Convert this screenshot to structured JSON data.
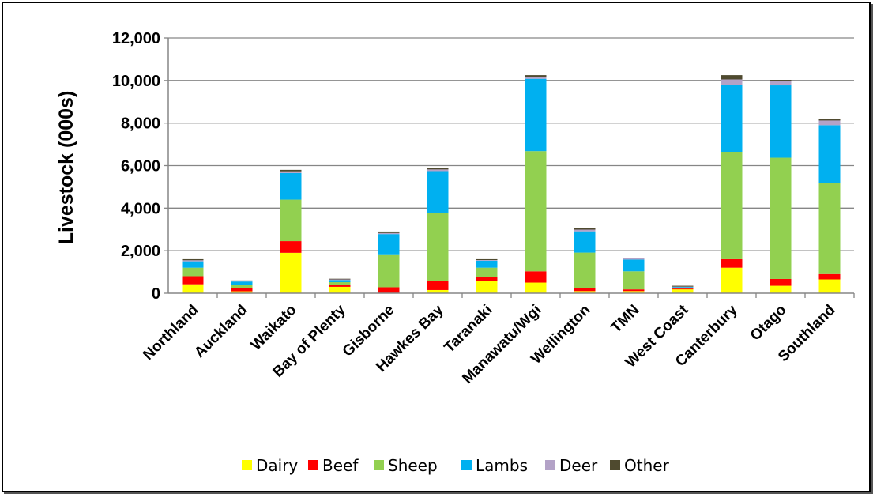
{
  "chart_data": {
    "type": "bar",
    "stacked": true,
    "title": "",
    "xlabel": "",
    "ylabel": "Livestock (000s)",
    "ylim": [
      0,
      12000
    ],
    "yticks": [
      0,
      2000,
      4000,
      6000,
      8000,
      10000,
      12000
    ],
    "ytick_labels": [
      "0",
      "2,000",
      "4,000",
      "6,000",
      "8,000",
      "10,000",
      "12,000"
    ],
    "grid": true,
    "legend_position": "bottom",
    "categories": [
      "Northland",
      "Auckland",
      "Waikato",
      "Bay of Plenty",
      "Gisborne",
      "Hawkes Bay",
      "Taranaki",
      "Manawatu/Wgi",
      "Wellington",
      "TMN",
      "West Coast",
      "Canterbury",
      "Otago",
      "Southland"
    ],
    "series": [
      {
        "name": "Dairy",
        "color": "#ffff00",
        "values": [
          420,
          90,
          1900,
          300,
          20,
          150,
          580,
          500,
          100,
          100,
          180,
          1200,
          350,
          650
        ]
      },
      {
        "name": "Beef",
        "color": "#ff0000",
        "values": [
          380,
          140,
          550,
          90,
          260,
          440,
          170,
          530,
          160,
          80,
          40,
          400,
          320,
          250
        ]
      },
      {
        "name": "Sheep",
        "color": "#92d050",
        "values": [
          400,
          150,
          1950,
          130,
          1550,
          3200,
          450,
          5650,
          1650,
          850,
          40,
          5050,
          5700,
          4300
        ]
      },
      {
        "name": "Lambs",
        "color": "#00b0f0",
        "values": [
          300,
          170,
          1250,
          100,
          950,
          1950,
          330,
          3400,
          1000,
          550,
          30,
          3150,
          3400,
          2700
        ]
      },
      {
        "name": "Deer",
        "color": "#b3a2c7",
        "values": [
          50,
          20,
          80,
          30,
          50,
          80,
          30,
          100,
          80,
          60,
          20,
          250,
          200,
          220
        ]
      },
      {
        "name": "Other",
        "color": "#4f4a2f",
        "values": [
          50,
          30,
          70,
          30,
          70,
          50,
          40,
          70,
          70,
          30,
          40,
          200,
          60,
          80
        ]
      }
    ]
  }
}
